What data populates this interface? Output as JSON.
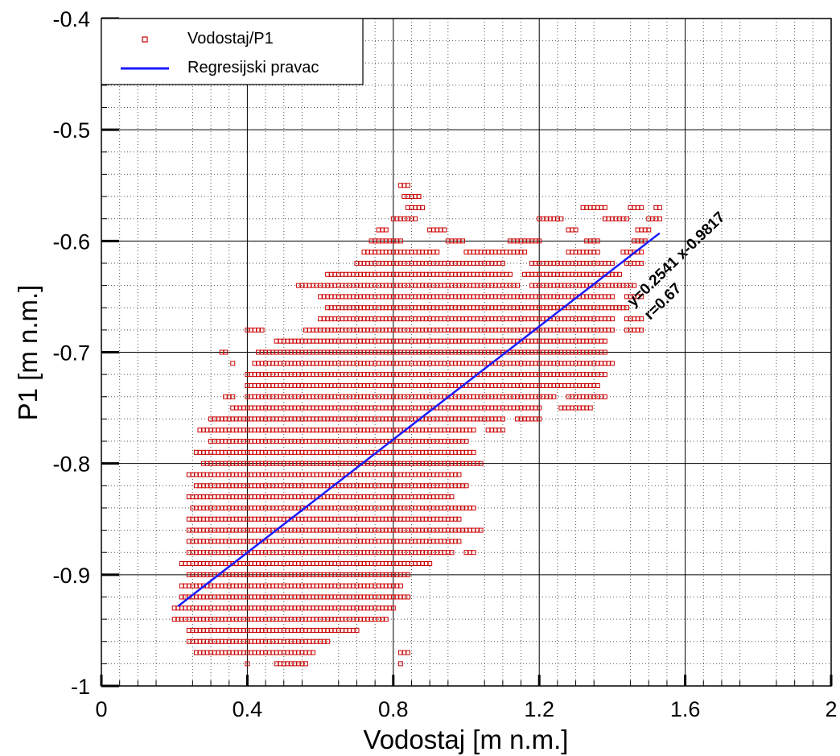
{
  "chart_data": {
    "type": "scatter",
    "title": "",
    "xlabel": "Vodostaj [m n.m.]",
    "ylabel": "P1 [m n.m.]",
    "xlim": [
      0,
      2
    ],
    "ylim": [
      -1,
      -0.4
    ],
    "x_ticks": [
      "0",
      "0.4",
      "0.8",
      "1.2",
      "1.6",
      "2"
    ],
    "x_tick_values": [
      0,
      0.4,
      0.8,
      1.2,
      1.6,
      2
    ],
    "y_ticks": [
      "-0.4",
      "-0.5",
      "-0.6",
      "-0.7",
      "-0.8",
      "-0.9",
      "-1"
    ],
    "y_tick_values": [
      -0.4,
      -0.5,
      -0.6,
      -0.7,
      -0.8,
      -0.9,
      -1
    ],
    "grid": "major solid, minor dotted",
    "legend": {
      "placement": "top-left",
      "entries": [
        "Vodostaj/P1",
        "Regresijski pravac"
      ]
    },
    "series": [
      {
        "name": "Vodostaj/P1",
        "kind": "scatter",
        "marker": "hollow-square",
        "color": "#cc0000",
        "y_step": 0.01,
        "x_step": 0.01,
        "columns": [
          {
            "y": -0.55,
            "x": [
              [
                0.82,
                0.84
              ]
            ]
          },
          {
            "y": -0.56,
            "x": [
              [
                0.83,
                0.87
              ]
            ]
          },
          {
            "y": -0.57,
            "x": [
              [
                0.84,
                0.88
              ],
              [
                1.32,
                1.38
              ],
              [
                1.45,
                1.48
              ],
              [
                1.52,
                1.53
              ]
            ]
          },
          {
            "y": -0.58,
            "x": [
              [
                0.8,
                0.86
              ],
              [
                1.2,
                1.26
              ],
              [
                1.38,
                1.44
              ],
              [
                1.5,
                1.53
              ]
            ]
          },
          {
            "y": -0.59,
            "x": [
              [
                0.76,
                0.78
              ],
              [
                0.9,
                0.94
              ],
              [
                1.28,
                1.3
              ],
              [
                1.47,
                1.5
              ]
            ]
          },
          {
            "y": -0.6,
            "x": [
              [
                0.74,
                0.82
              ],
              [
                0.95,
                0.99
              ],
              [
                1.12,
                1.2
              ],
              [
                1.33,
                1.36
              ],
              [
                1.46,
                1.49
              ]
            ]
          },
          {
            "y": -0.61,
            "x": [
              [
                0.72,
                0.92
              ],
              [
                1.0,
                1.16
              ],
              [
                1.28,
                1.36
              ],
              [
                1.43,
                1.48
              ]
            ]
          },
          {
            "y": -0.62,
            "x": [
              [
                0.7,
                1.1
              ],
              [
                1.18,
                1.4
              ],
              [
                1.44,
                1.48
              ]
            ]
          },
          {
            "y": -0.63,
            "x": [
              [
                0.62,
                1.12
              ],
              [
                1.16,
                1.42
              ]
            ]
          },
          {
            "y": -0.64,
            "x": [
              [
                0.54,
                1.14
              ],
              [
                1.18,
                1.46
              ]
            ]
          },
          {
            "y": -0.65,
            "x": [
              [
                0.6,
                1.4
              ],
              [
                1.44,
                1.48
              ]
            ]
          },
          {
            "y": -0.66,
            "x": [
              [
                0.62,
                1.44
              ]
            ]
          },
          {
            "y": -0.67,
            "x": [
              [
                0.6,
                1.4
              ],
              [
                1.44,
                1.48
              ]
            ]
          },
          {
            "y": -0.68,
            "x": [
              [
                0.4,
                0.44
              ],
              [
                0.56,
                1.4
              ],
              [
                1.44,
                1.48
              ]
            ]
          },
          {
            "y": -0.69,
            "x": [
              [
                0.48,
                1.38
              ]
            ]
          },
          {
            "y": -0.7,
            "x": [
              [
                0.33,
                0.34
              ],
              [
                0.43,
                1.38
              ]
            ]
          },
          {
            "y": -0.71,
            "x": [
              [
                0.36,
                0.36
              ],
              [
                0.42,
                1.4
              ]
            ]
          },
          {
            "y": -0.72,
            "x": [
              [
                0.4,
                1.38
              ]
            ]
          },
          {
            "y": -0.73,
            "x": [
              [
                0.4,
                1.36
              ]
            ]
          },
          {
            "y": -0.74,
            "x": [
              [
                0.34,
                0.36
              ],
              [
                0.4,
                1.24
              ],
              [
                1.28,
                1.38
              ]
            ]
          },
          {
            "y": -0.75,
            "x": [
              [
                0.36,
                1.2
              ],
              [
                1.26,
                1.34
              ]
            ]
          },
          {
            "y": -0.76,
            "x": [
              [
                0.3,
                1.1
              ],
              [
                1.14,
                1.2
              ]
            ]
          },
          {
            "y": -0.77,
            "x": [
              [
                0.27,
                1.02
              ],
              [
                1.06,
                1.1
              ]
            ]
          },
          {
            "y": -0.78,
            "x": [
              [
                0.3,
                1.0
              ]
            ]
          },
          {
            "y": -0.79,
            "x": [
              [
                0.26,
                1.02
              ]
            ]
          },
          {
            "y": -0.8,
            "x": [
              [
                0.28,
                1.04
              ]
            ]
          },
          {
            "y": -0.81,
            "x": [
              [
                0.24,
                0.98
              ]
            ]
          },
          {
            "y": -0.82,
            "x": [
              [
                0.26,
                1.0
              ]
            ]
          },
          {
            "y": -0.83,
            "x": [
              [
                0.24,
                0.96
              ]
            ]
          },
          {
            "y": -0.84,
            "x": [
              [
                0.25,
                1.02
              ]
            ]
          },
          {
            "y": -0.85,
            "x": [
              [
                0.24,
                0.98
              ]
            ]
          },
          {
            "y": -0.86,
            "x": [
              [
                0.24,
                1.04
              ]
            ]
          },
          {
            "y": -0.87,
            "x": [
              [
                0.24,
                0.98
              ]
            ]
          },
          {
            "y": -0.88,
            "x": [
              [
                0.24,
                0.96
              ],
              [
                1.0,
                1.02
              ]
            ]
          },
          {
            "y": -0.89,
            "x": [
              [
                0.22,
                0.9
              ]
            ]
          },
          {
            "y": -0.9,
            "x": [
              [
                0.24,
                0.84
              ]
            ]
          },
          {
            "y": -0.91,
            "x": [
              [
                0.22,
                0.82
              ]
            ]
          },
          {
            "y": -0.92,
            "x": [
              [
                0.22,
                0.84
              ]
            ]
          },
          {
            "y": -0.93,
            "x": [
              [
                0.2,
                0.8
              ]
            ]
          },
          {
            "y": -0.94,
            "x": [
              [
                0.2,
                0.78
              ]
            ]
          },
          {
            "y": -0.95,
            "x": [
              [
                0.24,
                0.7
              ]
            ]
          },
          {
            "y": -0.96,
            "x": [
              [
                0.24,
                0.62
              ]
            ]
          },
          {
            "y": -0.97,
            "x": [
              [
                0.26,
                0.58
              ],
              [
                0.82,
                0.84
              ]
            ]
          },
          {
            "y": -0.98,
            "x": [
              [
                0.4,
                0.4
              ],
              [
                0.48,
                0.56
              ],
              [
                0.82,
                0.82
              ]
            ]
          }
        ]
      },
      {
        "name": "Regresijski pravac",
        "kind": "line",
        "color": "#1a1aff",
        "slope": 0.2541,
        "intercept": -0.9817,
        "x_range": [
          0.21,
          1.53
        ]
      }
    ],
    "annotations": [
      "y=0.2541 x-0.9817",
      "r=0.67"
    ]
  }
}
